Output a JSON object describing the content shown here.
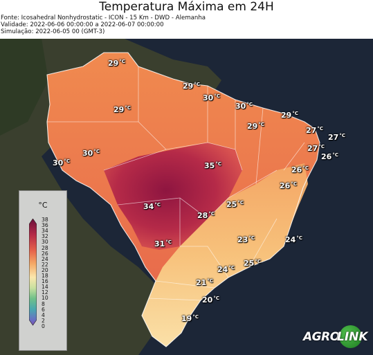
{
  "header": {
    "title": "Temperatura Máxima em 24H",
    "source": "Fonte: Icosahedral Nonhydrostatic - ICON - 15 Km - DWD - Alemanha",
    "validity": "Validade: 2022-06-06 00:00:00 a 2022-06-07 00:00:00",
    "simulation": "Simulação: 2022-06-05 00 (GMT-3)"
  },
  "legend": {
    "unit": "°C",
    "ticks": [
      "38",
      "36",
      "34",
      "32",
      "30",
      "28",
      "26",
      "24",
      "22",
      "20",
      "18",
      "16",
      "14",
      "12",
      "10",
      "8",
      "6",
      "4",
      "2",
      "0"
    ]
  },
  "colors": {
    "hot": "#8e1540",
    "warm": "#d95350",
    "mild": "#f08a4f",
    "cool": "#f8c67e",
    "light": "#fbe7ad",
    "ocean": "#1c2637",
    "land_outside": "#3a3f2e"
  },
  "labels": [
    {
      "value": "29",
      "unit": "°C"
    },
    {
      "value": "29",
      "unit": "°C"
    },
    {
      "value": "29",
      "unit": "°C"
    },
    {
      "value": "30",
      "unit": "°C"
    },
    {
      "value": "30",
      "unit": "°C"
    },
    {
      "value": "29",
      "unit": "°C"
    },
    {
      "value": "29",
      "unit": "°C"
    },
    {
      "value": "27",
      "unit": "°C"
    },
    {
      "value": "27",
      "unit": "°C"
    },
    {
      "value": "27",
      "unit": "°C"
    },
    {
      "value": "26",
      "unit": "°C"
    },
    {
      "value": "30",
      "unit": "°C"
    },
    {
      "value": "30",
      "unit": "°C"
    },
    {
      "value": "35",
      "unit": "°C"
    },
    {
      "value": "26",
      "unit": "°C"
    },
    {
      "value": "26",
      "unit": "°C"
    },
    {
      "value": "34",
      "unit": "°C"
    },
    {
      "value": "25",
      "unit": "°C"
    },
    {
      "value": "28",
      "unit": "°C"
    },
    {
      "value": "31",
      "unit": "°C"
    },
    {
      "value": "23",
      "unit": "°C"
    },
    {
      "value": "24",
      "unit": "°C"
    },
    {
      "value": "24",
      "unit": "°C"
    },
    {
      "value": "25",
      "unit": "°C"
    },
    {
      "value": "21",
      "unit": "°C"
    },
    {
      "value": "20",
      "unit": "°C"
    },
    {
      "value": "19",
      "unit": "°C"
    }
  ],
  "logo": {
    "part1": "AGRO",
    "part2": "LINK"
  }
}
